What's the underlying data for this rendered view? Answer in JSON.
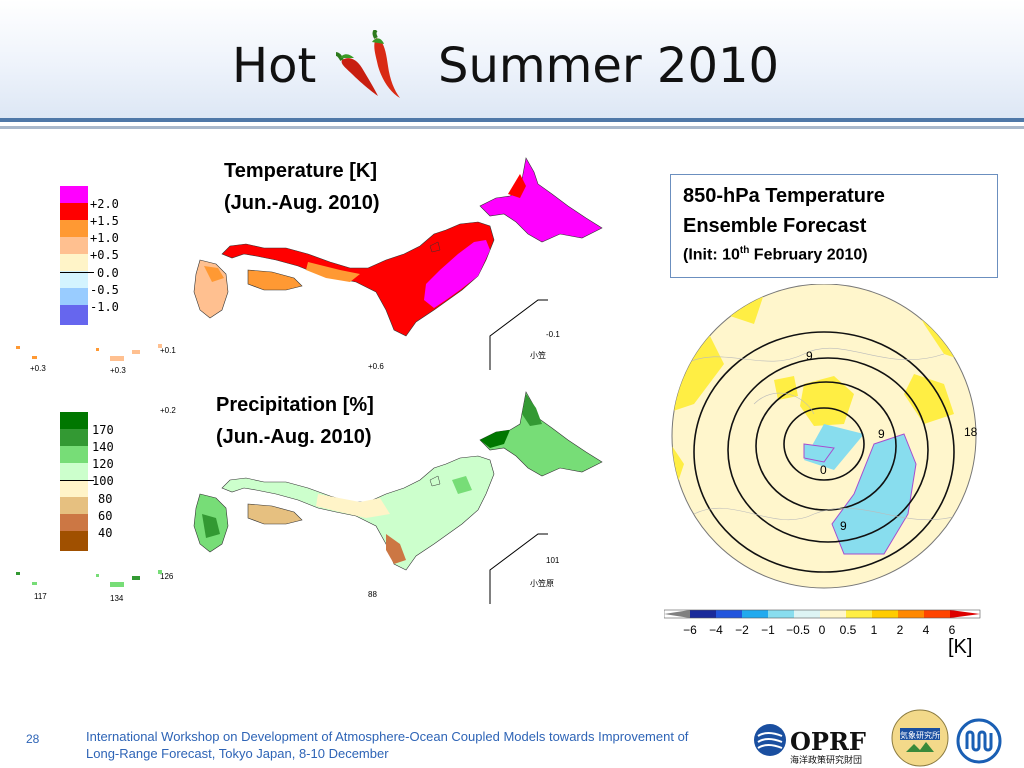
{
  "slide": {
    "title_left": "Hot",
    "title_right": "Summer 2010",
    "page_number": "28",
    "footer_line1": "International Workshop on Development of Atmosphere-Ocean Coupled Models towards Improvement of",
    "footer_line2": "Long-Range Forecast, Tokyo Japan, 8-10 December"
  },
  "temperature_map": {
    "title1": "Temperature [K]",
    "title2": "(Jun.-Aug. 2010)",
    "scale_labels": [
      "+2.0",
      "+1.5",
      "+1.0",
      "+0.5",
      "0.0",
      "-0.5",
      "-1.0"
    ],
    "scale_colors": [
      "#ff00ff",
      "#ff0000",
      "#ff9933",
      "#ffc090",
      "#fff4c8",
      "#d4f4ff",
      "#99ccff",
      "#6666ee"
    ],
    "island_values": [
      "+0.1",
      "+0.3",
      "+0.3",
      "+0.6",
      "-0.1",
      "+0.2"
    ],
    "inset_label": "小笠"
  },
  "precipitation_map": {
    "title1": "Precipitation [%]",
    "title2": "(Jun.-Aug. 2010)",
    "scale_labels": [
      "170",
      "140",
      "120",
      "100",
      "80",
      "60",
      "40"
    ],
    "scale_colors": [
      "#007700",
      "#339933",
      "#77dd77",
      "#ccffcc",
      "#fff4c8",
      "#e6c080",
      "#cc7744",
      "#a05000"
    ],
    "island_values": [
      "126",
      "117",
      "134",
      "88",
      "101"
    ],
    "inset_label": "小笠原"
  },
  "forecast": {
    "title1": "850-hPa Temperature",
    "title2": "Ensemble Forecast",
    "init_prefix": "(Init:  10",
    "init_sup": "th",
    "init_suffix": " February  2010)",
    "contour_labels": [
      "9",
      "9",
      "18",
      "0",
      "9"
    ],
    "colorbar_ticks": [
      "−6",
      "−4",
      "−2",
      "−1",
      "−0.5",
      "0",
      "0.5",
      "1",
      "2",
      "4",
      "6"
    ],
    "colorbar_colors": [
      "#808080",
      "#1a2a9a",
      "#2255dd",
      "#22aaee",
      "#88ddee",
      "#ddf4f4",
      "#fff6cc",
      "#ffee44",
      "#ffcc00",
      "#ff8800",
      "#ff4400",
      "#dd0000"
    ],
    "unit": "[K]"
  },
  "logos": {
    "oprf_text": "OPRF",
    "oprf_sub": "海洋政策研究財団",
    "mri_text": "気象研究所"
  }
}
